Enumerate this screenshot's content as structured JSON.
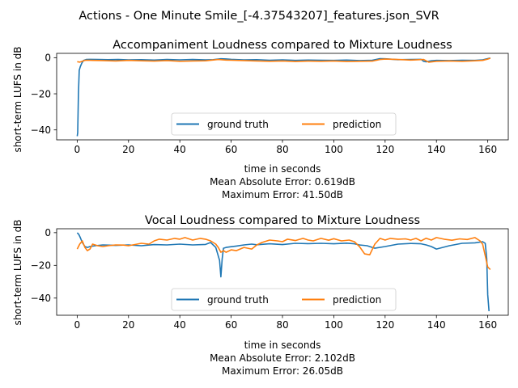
{
  "suptitle": "Actions - One Minute Smile_[-4.37543207]_features.json_SVR",
  "colors": {
    "ground_truth": "#1f77b4",
    "prediction": "#ff7f0e"
  },
  "chart_data": [
    {
      "type": "line",
      "title": "Accompaniment Loudness compared to Mixture Loudness",
      "xlabel": "time in seconds",
      "ylabel": "short-term LUFS in dB",
      "xlim": [
        -8,
        168
      ],
      "ylim": [
        -45.5,
        2.4
      ],
      "xticks": [
        0,
        20,
        40,
        60,
        80,
        100,
        120,
        140,
        160
      ],
      "yticks": [
        0,
        -20,
        -40
      ],
      "ytick_labels": [
        "0",
        "−20",
        "−40"
      ],
      "grid": false,
      "legend": "lower center",
      "annotations": [
        "Mean Absolute Error: 0.619dB",
        "Maximum Error: 41.50dB"
      ],
      "series": [
        {
          "name": "ground truth",
          "x": [
            0,
            0.2,
            0.5,
            0.8,
            1.2,
            1.8,
            2.5,
            3.5,
            5,
            8,
            12,
            16,
            20,
            25,
            30,
            35,
            40,
            45,
            50,
            53,
            56,
            58,
            60,
            65,
            70,
            75,
            80,
            85,
            90,
            95,
            100,
            105,
            110,
            115,
            118,
            120,
            125,
            130,
            134,
            135,
            136,
            138,
            140,
            145,
            150,
            155,
            158,
            160,
            161
          ],
          "values": [
            -43.5,
            -41.5,
            -20,
            -7,
            -5,
            -3,
            -1.5,
            -1,
            -0.9,
            -1,
            -1.1,
            -1,
            -1.2,
            -1.1,
            -1.3,
            -1,
            -1.2,
            -1,
            -1.2,
            -1.1,
            -0.6,
            -0.7,
            -0.9,
            -1.2,
            -1.1,
            -1.4,
            -1.2,
            -1.5,
            -1.3,
            -1.4,
            -1.5,
            -1.3,
            -1.6,
            -1.4,
            -0.5,
            -0.6,
            -1.1,
            -1.0,
            -0.9,
            -2.0,
            -2.3,
            -1.7,
            -1.5,
            -1.6,
            -1.4,
            -1.5,
            -1.2,
            -0.5,
            -0.2
          ]
        },
        {
          "name": "prediction",
          "x": [
            0,
            1,
            2,
            3,
            4,
            6,
            10,
            15,
            20,
            25,
            30,
            35,
            40,
            45,
            50,
            55,
            58,
            60,
            65,
            70,
            75,
            80,
            85,
            90,
            95,
            100,
            105,
            110,
            115,
            118,
            120,
            125,
            130,
            135,
            137,
            140,
            145,
            150,
            155,
            158,
            160,
            161
          ],
          "values": [
            -2.2,
            -2.5,
            -2.0,
            -1.5,
            -1.4,
            -1.5,
            -1.6,
            -1.8,
            -1.5,
            -1.7,
            -1.9,
            -1.6,
            -2.0,
            -1.8,
            -1.7,
            -1.0,
            -1.3,
            -1.4,
            -1.6,
            -1.8,
            -2.0,
            -1.8,
            -2.1,
            -1.9,
            -2.0,
            -1.8,
            -2.1,
            -2.0,
            -1.9,
            -1.0,
            -0.8,
            -1.0,
            -1.3,
            -1.0,
            -2.5,
            -2.0,
            -1.8,
            -2.0,
            -1.7,
            -1.5,
            -0.8,
            -0.3
          ]
        }
      ]
    },
    {
      "type": "line",
      "title": "Vocal Loudness compared to Mixture Loudness",
      "xlabel": "time in seconds",
      "ylabel": "short-term LUFS in dB",
      "xlim": [
        -8,
        168
      ],
      "ylim": [
        -50.5,
        2.4
      ],
      "xticks": [
        0,
        20,
        40,
        60,
        80,
        100,
        120,
        140,
        160
      ],
      "yticks": [
        0,
        -20,
        -40
      ],
      "ytick_labels": [
        "0",
        "−20",
        "−40"
      ],
      "grid": false,
      "legend": "lower center",
      "annotations": [
        "Mean Absolute Error: 2.102dB",
        "Maximum Error: 26.05dB"
      ],
      "series": [
        {
          "name": "ground truth",
          "x": [
            0,
            0.6,
            1.2,
            2,
            3,
            4,
            5,
            7,
            10,
            15,
            20,
            25,
            30,
            35,
            40,
            45,
            50,
            52,
            54,
            55.5,
            56,
            56.5,
            57,
            58,
            60,
            62,
            65,
            68,
            70,
            75,
            80,
            85,
            90,
            95,
            100,
            105,
            108,
            110,
            113,
            116,
            120,
            125,
            130,
            134,
            136,
            138,
            140,
            145,
            150,
            155,
            158,
            159,
            159.6,
            160,
            160.5
          ],
          "values": [
            0,
            -1,
            -3,
            -6,
            -8.5,
            -9,
            -8.5,
            -8,
            -7.5,
            -7.8,
            -7.5,
            -8,
            -7.3,
            -7.5,
            -7,
            -7.5,
            -7.2,
            -6,
            -9,
            -17,
            -27,
            -16,
            -9.5,
            -9,
            -8.6,
            -8.2,
            -7.5,
            -7,
            -7.4,
            -6.8,
            -7.3,
            -6.5,
            -6.7,
            -6.5,
            -6.8,
            -6.4,
            -6.8,
            -7.5,
            -8,
            -9.5,
            -8.5,
            -7,
            -6.6,
            -6.8,
            -7.5,
            -8.5,
            -10,
            -8,
            -6.5,
            -6.2,
            -5.5,
            -6.5,
            -16,
            -38,
            -48
          ]
        },
        {
          "name": "prediction",
          "x": [
            0,
            1,
            2,
            3,
            4,
            5,
            6,
            8,
            10,
            12,
            15,
            18,
            20,
            25,
            28,
            30,
            32,
            35,
            38,
            40,
            42,
            45,
            48,
            50,
            52,
            54,
            55,
            56,
            57,
            58,
            60,
            62,
            65,
            68,
            70,
            72,
            75,
            78,
            80,
            82,
            85,
            88,
            90,
            92,
            95,
            98,
            100,
            103,
            106,
            108,
            110,
            112,
            114,
            116,
            118,
            120,
            122,
            125,
            128,
            130,
            132,
            134,
            136,
            138,
            140,
            143,
            146,
            149,
            152,
            155,
            157,
            158,
            159,
            160,
            161
          ],
          "values": [
            -10,
            -7,
            -5,
            -9,
            -11,
            -10,
            -7,
            -8,
            -8.5,
            -8,
            -7.5,
            -7.6,
            -8,
            -6.5,
            -7,
            -5,
            -4,
            -4.5,
            -3.5,
            -4,
            -3,
            -4.5,
            -3.5,
            -4,
            -5,
            -7,
            -9,
            -12,
            -11,
            -12,
            -10.5,
            -11,
            -9,
            -10,
            -7.5,
            -6,
            -4.5,
            -5,
            -5.5,
            -4,
            -4.8,
            -3.5,
            -4.5,
            -5,
            -3.5,
            -4.6,
            -3.7,
            -5,
            -4.5,
            -5.5,
            -8.5,
            -13,
            -13.5,
            -7,
            -3.5,
            -4.5,
            -3.5,
            -4,
            -3.8,
            -4.5,
            -3.5,
            -5,
            -3.4,
            -4.5,
            -3,
            -4,
            -4.6,
            -3.8,
            -4.2,
            -3,
            -5,
            -7,
            -14,
            -21,
            -22.5
          ]
        }
      ]
    }
  ]
}
